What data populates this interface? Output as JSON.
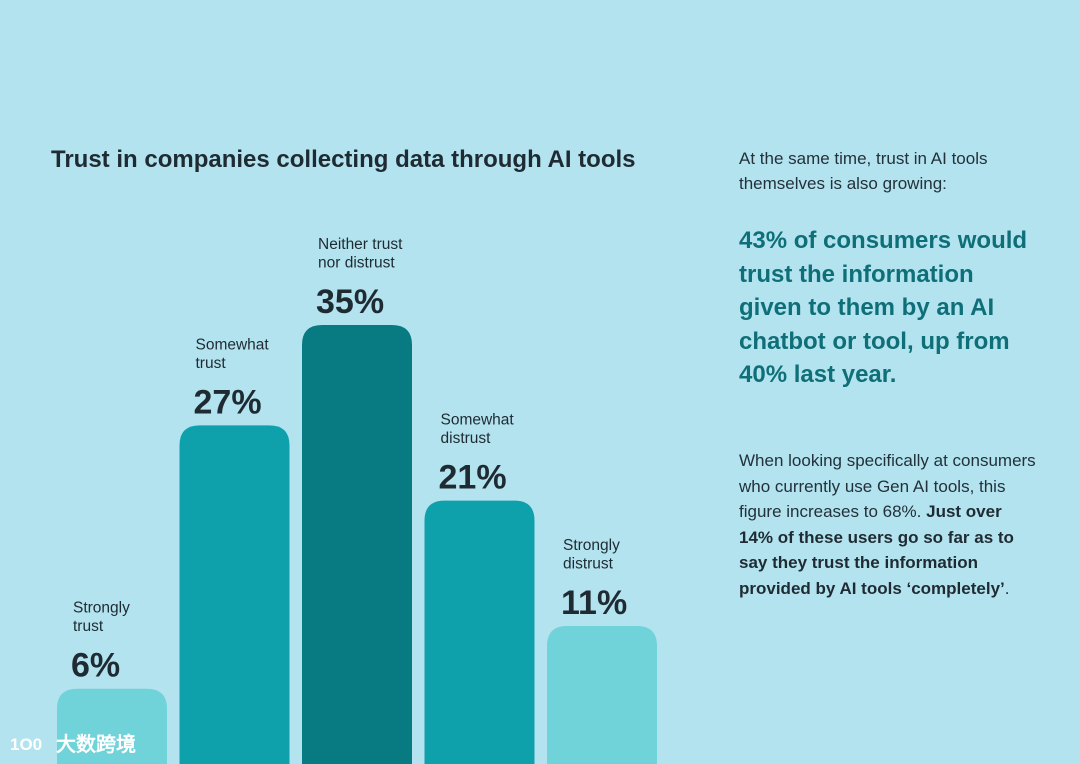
{
  "chart_data": {
    "type": "bar",
    "title": "Trust in companies collecting data through AI tools",
    "categories": [
      [
        "Strongly",
        "trust"
      ],
      [
        "Somewhat",
        "trust"
      ],
      [
        "Neither trust",
        "nor distrust"
      ],
      [
        "Somewhat",
        "distrust"
      ],
      [
        "Strongly",
        "distrust"
      ]
    ],
    "values": [
      6,
      27,
      35,
      21,
      11
    ],
    "value_labels": [
      "6%",
      "27%",
      "35%",
      "21%",
      "11%"
    ],
    "colors": [
      "#6fd3d9",
      "#0fa1ab",
      "#087a82",
      "#0fa1ab",
      "#6fd3d9"
    ],
    "unit": "%",
    "xlabel": "",
    "ylabel": "",
    "ylim": [
      0,
      35
    ],
    "grid": false
  },
  "side": {
    "intro": "At the same time, trust in AI tools themselves is also growing:",
    "highlight": "43% of consumers would trust the information given to them by an AI chatbot or tool, up from 40% last year.",
    "body_plain": "When looking specifically at consumers who currently use Gen AI tools, this figure increases to 68%. ",
    "body_bold": "Just over 14% of these users go so far as to say they trust the information provided by AI tools ‘completely’",
    "body_end": "."
  },
  "watermark": {
    "logo_text": "1O0",
    "text": "大数跨境"
  }
}
